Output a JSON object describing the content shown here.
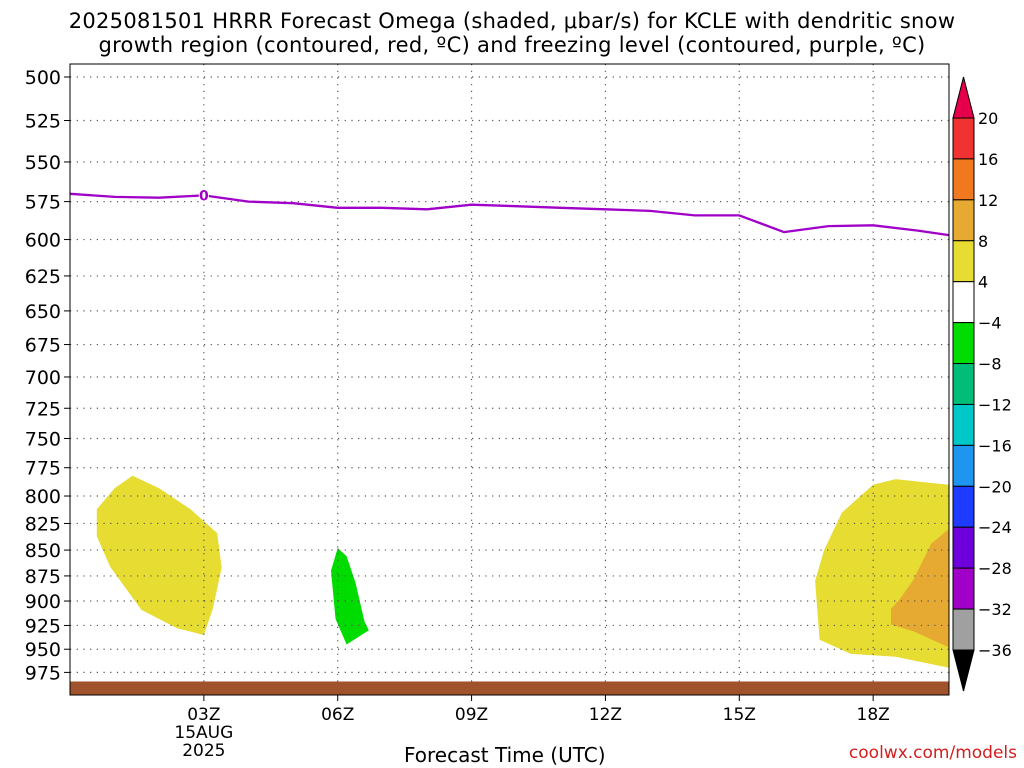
{
  "chart_data": {
    "type": "contour",
    "title_line1": "2025081501 HRRR Forecast Omega (shaded, μbar/s) for KCLE with dendritic snow",
    "title_line2": "growth region (contoured, red, ºC) and freezing level (contoured, purple, ºC)",
    "xlabel": "Forecast Time (UTC)",
    "ylabel": "",
    "credit": "coolwx.com/models",
    "x_range_hours": [
      0.0,
      19.7
    ],
    "x_ticks": [
      {
        "hour": 3,
        "label": "03Z",
        "sub1": "15AUG",
        "sub2": "2025"
      },
      {
        "hour": 6,
        "label": "06Z"
      },
      {
        "hour": 9,
        "label": "09Z"
      },
      {
        "hour": 12,
        "label": "12Z"
      },
      {
        "hour": 15,
        "label": "15Z"
      },
      {
        "hour": 18,
        "label": "18Z"
      }
    ],
    "y_axis": {
      "scale": "log",
      "range_hpa": [
        500,
        990
      ],
      "inverted": true
    },
    "y_ticks": [
      500,
      525,
      550,
      575,
      600,
      625,
      650,
      675,
      700,
      725,
      750,
      775,
      800,
      825,
      850,
      875,
      900,
      925,
      950,
      975
    ],
    "grid": true,
    "freezing_level": {
      "color": "#a000c8",
      "label": "0",
      "label_hour": 3.0,
      "points": [
        [
          0.0,
          570
        ],
        [
          1.0,
          572
        ],
        [
          2.0,
          572.5
        ],
        [
          3.0,
          571
        ],
        [
          4.0,
          575
        ],
        [
          5.0,
          576
        ],
        [
          6.0,
          579
        ],
        [
          7.0,
          579
        ],
        [
          8.0,
          580
        ],
        [
          9.0,
          577
        ],
        [
          10.0,
          578
        ],
        [
          11.0,
          579
        ],
        [
          12.0,
          580
        ],
        [
          13.0,
          581
        ],
        [
          14.0,
          584
        ],
        [
          15.0,
          584
        ],
        [
          16.0,
          595
        ],
        [
          17.0,
          591
        ],
        [
          18.0,
          590.5
        ],
        [
          19.0,
          594
        ],
        [
          19.7,
          597
        ]
      ]
    },
    "omega_regions": [
      {
        "level": "4 to 8",
        "color": "#e6dc32",
        "points": [
          [
            0.6,
            837
          ],
          [
            0.6,
            812
          ],
          [
            1.0,
            793
          ],
          [
            1.4,
            782
          ],
          [
            2.0,
            793
          ],
          [
            2.7,
            812
          ],
          [
            3.3,
            834
          ],
          [
            3.4,
            867
          ],
          [
            3.2,
            908
          ],
          [
            3.0,
            935
          ],
          [
            2.4,
            928
          ],
          [
            1.6,
            909
          ],
          [
            0.9,
            866
          ]
        ]
      },
      {
        "level": "-8 to -4",
        "color": "#00dc00",
        "points": [
          [
            6.0,
            848
          ],
          [
            6.2,
            856
          ],
          [
            6.4,
            882
          ],
          [
            6.6,
            921
          ],
          [
            6.7,
            930
          ],
          [
            6.2,
            945
          ],
          [
            5.95,
            918
          ],
          [
            5.85,
            870
          ]
        ]
      },
      {
        "level": "4 to 8",
        "color": "#e6dc32",
        "points": [
          [
            19.7,
            790
          ],
          [
            19.2,
            788
          ],
          [
            18.5,
            785
          ],
          [
            18.0,
            790
          ],
          [
            17.3,
            815
          ],
          [
            16.9,
            850
          ],
          [
            16.7,
            880
          ],
          [
            16.8,
            940
          ],
          [
            17.5,
            955
          ],
          [
            18.5,
            958
          ],
          [
            19.7,
            970
          ]
        ]
      },
      {
        "level": "8 to 12",
        "color": "#e6aa32",
        "points": [
          [
            19.7,
            830
          ],
          [
            19.3,
            844
          ],
          [
            18.9,
            879
          ],
          [
            18.6,
            898
          ],
          [
            18.4,
            908
          ],
          [
            18.4,
            924
          ],
          [
            18.9,
            931
          ],
          [
            19.7,
            948
          ]
        ]
      }
    ],
    "surface_band": {
      "color": "#a0522d",
      "pressure_hpa": 985
    },
    "colorbar": {
      "labels": [
        "20",
        "16",
        "12",
        "8",
        "4",
        "−4",
        "−8",
        "−12",
        "−16",
        "−20",
        "−24",
        "−28",
        "−32",
        "−36"
      ],
      "colors": [
        "#e6004b",
        "#f03232",
        "#f0781e",
        "#e6aa32",
        "#e6dc32",
        "#ffffff",
        "#00dc00",
        "#00be78",
        "#00c8c8",
        "#1e96f0",
        "#1e3cff",
        "#6e00dc",
        "#a000c8",
        "#a0a0a0",
        "#000000"
      ]
    }
  }
}
